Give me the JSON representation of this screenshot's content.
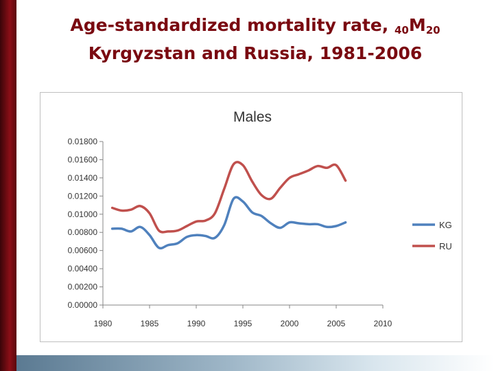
{
  "slide": {
    "title_prefix": "Age-standardized mortality rate, ",
    "title_sub_left": "40",
    "title_letter": "M",
    "title_sub_right": "20",
    "title_line2": "Kyrgyzstan and Russia, 1981-2006"
  },
  "colors": {
    "title": "#7a0a11",
    "KG": "#4f81bd",
    "RU": "#c0504d"
  },
  "chart_data": {
    "type": "line",
    "title": "Males",
    "xlabel": "",
    "ylabel": "",
    "xlim": [
      1980,
      2010
    ],
    "ylim": [
      0,
      0.018
    ],
    "x_ticks": [
      1980,
      1985,
      1990,
      1995,
      2000,
      2005,
      2010
    ],
    "x_tick_labels": [
      "1980",
      "1985",
      "1990",
      "1995",
      "2000",
      "2005",
      "2010"
    ],
    "y_ticks": [
      0,
      0.002,
      0.004,
      0.006,
      0.008,
      0.01,
      0.012,
      0.014,
      0.016,
      0.018
    ],
    "y_tick_labels": [
      "0.00000",
      "0.00200",
      "0.00400",
      "0.00600",
      "0.00800",
      "0.01000",
      "0.01200",
      "0.01400",
      "0.01600",
      "0.01800"
    ],
    "grid": false,
    "legend_position": "right",
    "series": [
      {
        "name": "KG",
        "x": [
          1981,
          1982,
          1983,
          1984,
          1985,
          1986,
          1987,
          1988,
          1989,
          1990,
          1991,
          1992,
          1993,
          1994,
          1995,
          1996,
          1997,
          1998,
          1999,
          2000,
          2001,
          2002,
          2003,
          2004,
          2005,
          2006
        ],
        "values": [
          0.0084,
          0.0084,
          0.0081,
          0.0086,
          0.0077,
          0.0063,
          0.0066,
          0.0068,
          0.0075,
          0.0077,
          0.0076,
          0.0074,
          0.0088,
          0.0117,
          0.0114,
          0.0102,
          0.0098,
          0.009,
          0.0085,
          0.0091,
          0.009,
          0.0089,
          0.0089,
          0.0086,
          0.0087,
          0.0091
        ]
      },
      {
        "name": "RU",
        "x": [
          1981,
          1982,
          1983,
          1984,
          1985,
          1986,
          1987,
          1988,
          1989,
          1990,
          1991,
          1992,
          1993,
          1994,
          1995,
          1996,
          1997,
          1998,
          1999,
          2000,
          2001,
          2002,
          2003,
          2004,
          2005,
          2006
        ],
        "values": [
          0.0107,
          0.0104,
          0.0105,
          0.0109,
          0.0101,
          0.0082,
          0.0081,
          0.0082,
          0.0087,
          0.0092,
          0.0093,
          0.0101,
          0.0128,
          0.0155,
          0.0154,
          0.0136,
          0.0121,
          0.0117,
          0.0129,
          0.014,
          0.0144,
          0.0148,
          0.0153,
          0.0151,
          0.0154,
          0.0137
        ]
      }
    ]
  }
}
